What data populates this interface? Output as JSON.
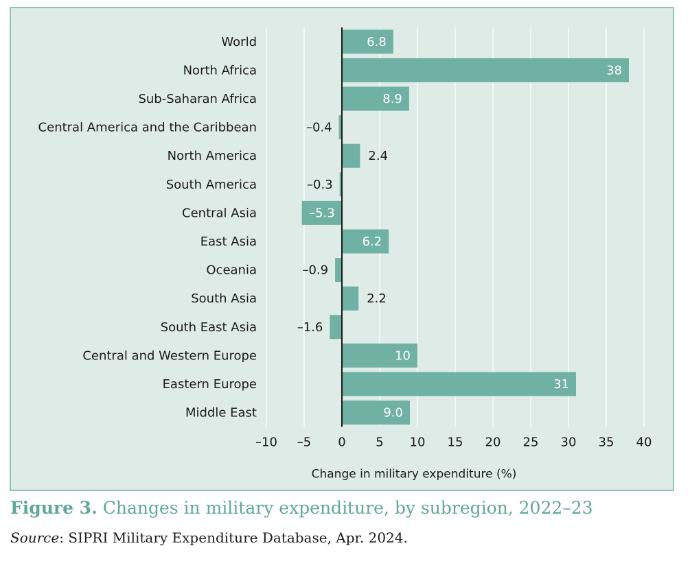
{
  "figure": {
    "label": "Figure 3.",
    "title": "Changes in military expenditure, by subregion, 2022–23",
    "source_label": "Source",
    "source_text": ": SIPRI Military Expenditure Database, Apr. 2024."
  },
  "colors": {
    "bar": "#6fb1a2",
    "panel": "#dfebe6",
    "border": "#8fc3b5",
    "caption": "#5fa898"
  },
  "chart_data": {
    "type": "bar",
    "orientation": "horizontal",
    "categories": [
      "World",
      "North Africa",
      "Sub-Saharan Africa",
      "Central America and the Caribbean",
      "North America",
      "South America",
      "Central Asia",
      "East Asia",
      "Oceania",
      "South Asia",
      "South East Asia",
      "Central and Western Europe",
      "Eastern Europe",
      "Middle East"
    ],
    "values": [
      6.8,
      38,
      8.9,
      -0.4,
      2.4,
      -0.3,
      -5.3,
      6.2,
      -0.9,
      2.2,
      -1.6,
      10,
      31,
      9.0
    ],
    "value_labels": [
      "6.8",
      "38",
      "8.9",
      "–0.4",
      "2.4",
      "–0.3",
      "–5.3",
      "6.2",
      "–0.9",
      "2.2",
      "–1.6",
      "10",
      "31",
      "9.0"
    ],
    "xlabel": "Change in military expenditure (%)",
    "ylabel": "",
    "xlim": [
      -10,
      40
    ],
    "xticks": [
      -10,
      -5,
      0,
      5,
      10,
      15,
      20,
      25,
      30,
      35,
      40
    ],
    "xtick_labels": [
      "–10",
      "–5",
      "0",
      "5",
      "10",
      "15",
      "20",
      "25",
      "30",
      "35",
      "40"
    ],
    "grid": true
  }
}
